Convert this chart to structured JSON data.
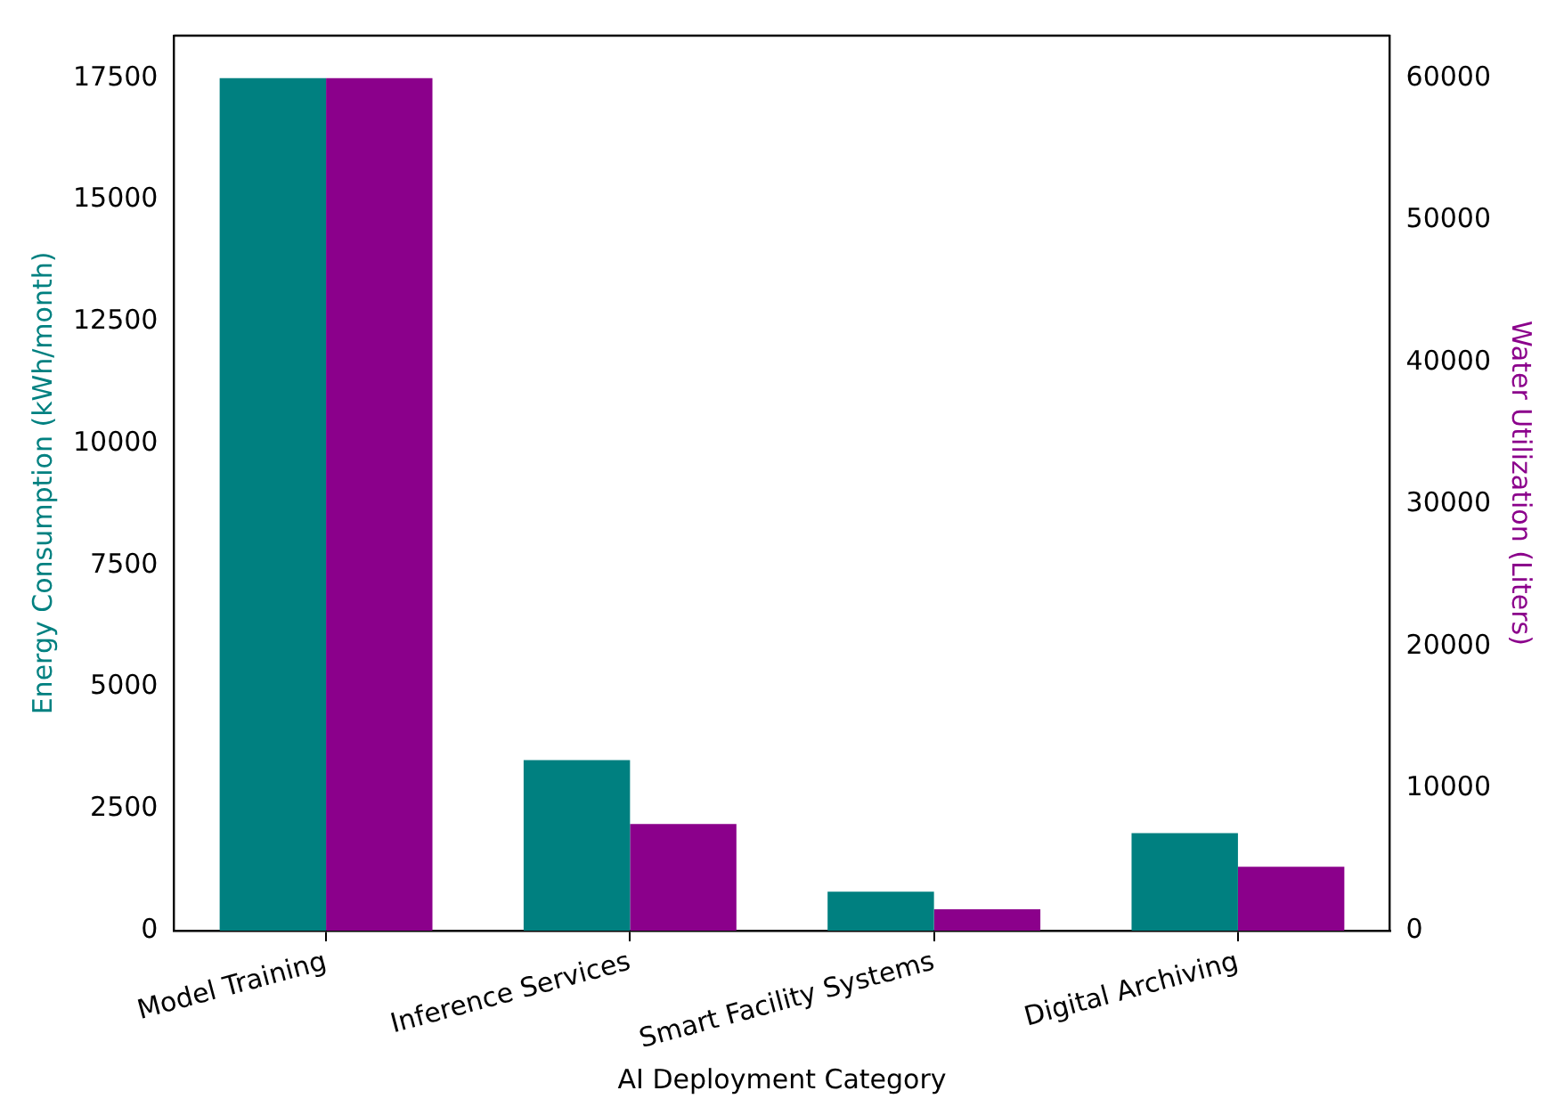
{
  "chart_data": {
    "type": "bar",
    "xlabel": "AI Deployment Category",
    "ylabel": "Energy Consumption (kWh/month)",
    "y2label": "Water Utilization (Liters)",
    "categories": [
      "Model Training",
      "Inference Services",
      "Smart Facility Systems",
      "Digital Archiving"
    ],
    "series": [
      {
        "color": "#008080",
        "values": [
          17500,
          3500,
          800,
          2000
        ]
      },
      {
        "color": "#8b008b",
        "axis": "y2",
        "values": [
          60000,
          7500,
          1500,
          4500
        ]
      }
    ],
    "ylim": [
      0,
      18375
    ],
    "yticks": [
      0,
      2500,
      5000,
      7500,
      10000,
      12500,
      15000,
      17500
    ],
    "y2lim": [
      0,
      63000
    ],
    "y2ticks": [
      0,
      10000,
      20000,
      30000,
      40000,
      50000,
      60000
    ],
    "grid": false,
    "legend": false
  }
}
